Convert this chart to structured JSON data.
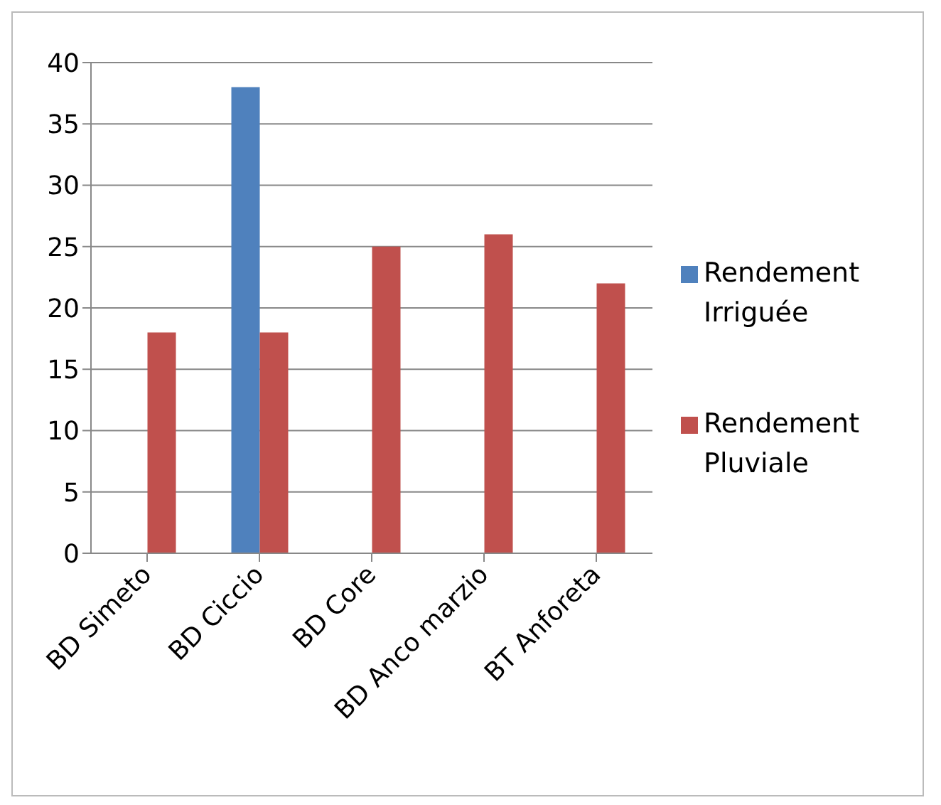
{
  "chart_data": {
    "type": "bar",
    "categories": [
      "BD Simeto",
      "BD Ciccio",
      "BD Core",
      "BD Anco marzio",
      "BT Anforeta"
    ],
    "series": [
      {
        "name": "Rendement Irriguée",
        "color": "#4f81bd",
        "values": [
          null,
          38,
          null,
          null,
          null
        ]
      },
      {
        "name": "Rendement Pluviale",
        "color": "#c0504d",
        "values": [
          18,
          18,
          25,
          26,
          22
        ]
      }
    ],
    "ylim": [
      0,
      40
    ],
    "yticks": [
      0,
      5,
      10,
      15,
      20,
      25,
      30,
      35,
      40
    ],
    "grid": "y",
    "legend": "right"
  }
}
